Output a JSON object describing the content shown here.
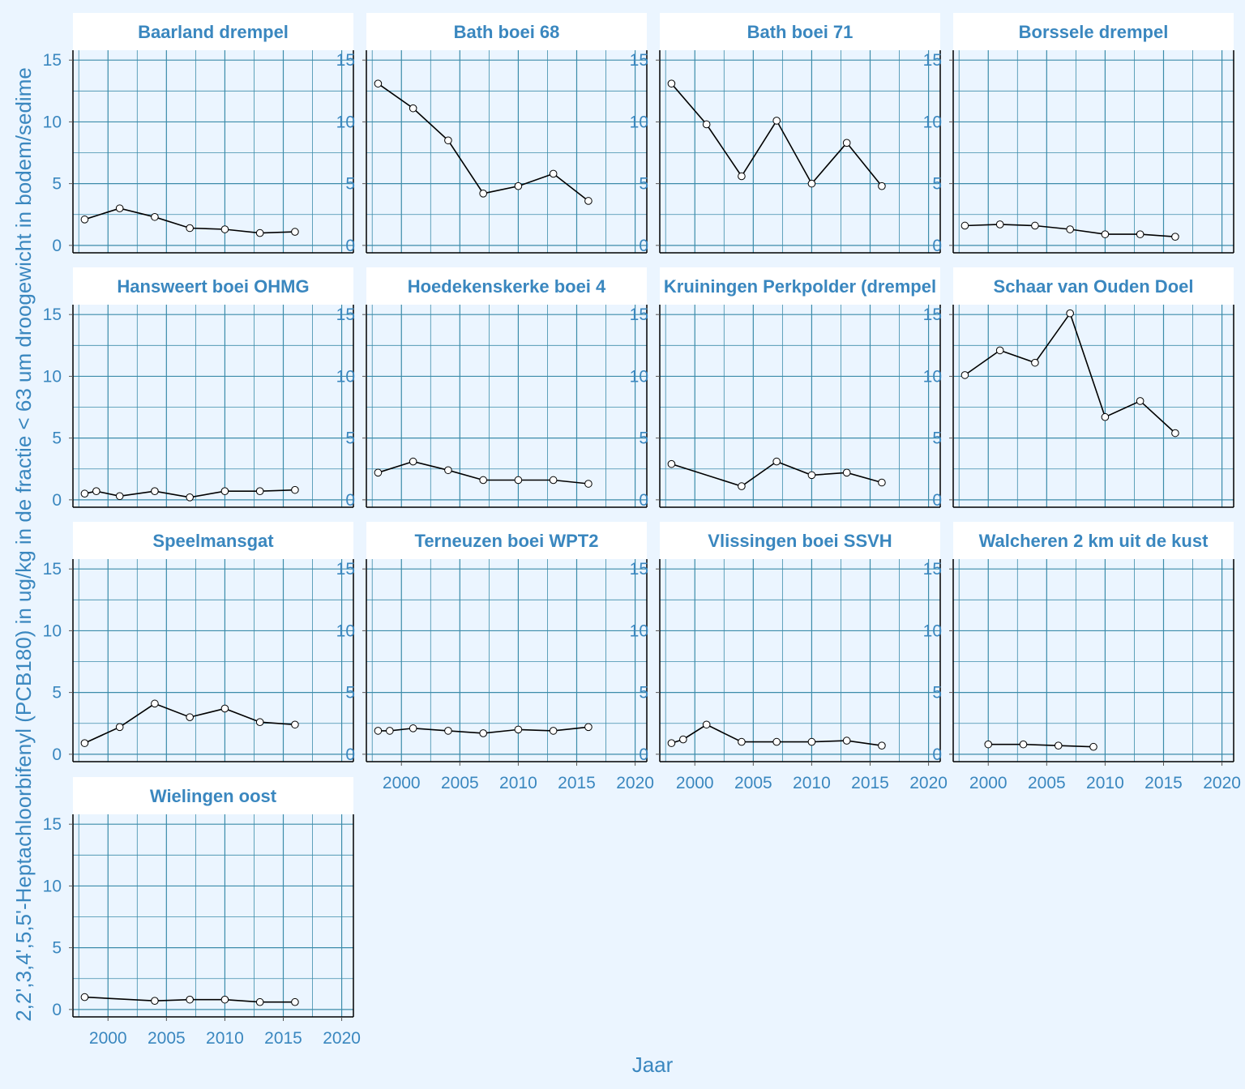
{
  "chart_data": {
    "type": "line",
    "layout": "facet_grid_4_columns",
    "xlabel": "Jaar",
    "ylabel": "2,2',3,4',5,5'-Heptachloorbifenyl (PCB180) in ug/kg in de fractie < 63 um droogewicht in bodem/sedime",
    "xlim": [
      1997,
      2021
    ],
    "ylim": [
      -0.6,
      15.8
    ],
    "x_ticks": [
      2000,
      2005,
      2010,
      2015,
      2020
    ],
    "y_ticks": [
      0,
      5,
      10,
      15
    ],
    "x_tick_labels": [
      "2000",
      "2005",
      "2010",
      "2015",
      "2020"
    ],
    "y_tick_labels": [
      "0",
      "5",
      "10",
      "15"
    ],
    "grid": true,
    "colors": {
      "background": "#EBF5FF",
      "panel_background": "#EBF5FF",
      "strip_background": "#FFFFFF",
      "text": "#3A87BF",
      "grid": "#3C8CAA",
      "line": "#000000",
      "marker_fill": "#FFFFFF"
    },
    "panels": [
      {
        "title": "Baarland drempel",
        "x": [
          1998,
          2001,
          2004,
          2007,
          2010,
          2013,
          2016
        ],
        "y": [
          2.1,
          3.0,
          2.3,
          1.4,
          1.3,
          1.0,
          1.1
        ]
      },
      {
        "title": "Bath boei 68",
        "x": [
          1998,
          2001,
          2004,
          2007,
          2010,
          2013,
          2016
        ],
        "y": [
          13.1,
          11.1,
          8.5,
          4.2,
          4.8,
          5.8,
          3.6
        ]
      },
      {
        "title": "Bath boei 71",
        "x": [
          1998,
          2001,
          2004,
          2007,
          2010,
          2013,
          2016
        ],
        "y": [
          13.1,
          9.8,
          5.6,
          10.1,
          5.0,
          8.3,
          4.8
        ]
      },
      {
        "title": "Borssele drempel",
        "x": [
          1998,
          2001,
          2004,
          2007,
          2010,
          2013,
          2016
        ],
        "y": [
          1.6,
          1.7,
          1.6,
          1.3,
          0.9,
          0.9,
          0.7
        ]
      },
      {
        "title": "Hansweert boei OHMG",
        "x": [
          1998,
          1999,
          2001,
          2004,
          2007,
          2010,
          2013,
          2016
        ],
        "y": [
          0.5,
          0.7,
          0.3,
          0.7,
          0.2,
          0.7,
          0.7,
          0.8
        ]
      },
      {
        "title": "Hoedekenskerke boei 4",
        "x": [
          1998,
          2001,
          2004,
          2007,
          2010,
          2013,
          2016
        ],
        "y": [
          2.2,
          3.1,
          2.4,
          1.6,
          1.6,
          1.6,
          1.3
        ]
      },
      {
        "title": "Kruiningen Perkpolder (drempel",
        "x": [
          1998,
          2004,
          2007,
          2010,
          2013,
          2016
        ],
        "y": [
          2.9,
          1.1,
          3.1,
          2.0,
          2.2,
          1.4
        ]
      },
      {
        "title": "Schaar van Ouden Doel",
        "x": [
          1998,
          2001,
          2004,
          2007,
          2010,
          2013,
          2016
        ],
        "y": [
          10.1,
          12.1,
          11.1,
          15.1,
          6.7,
          8.0,
          5.4
        ]
      },
      {
        "title": "Speelmansgat",
        "x": [
          1998,
          2001,
          2004,
          2007,
          2010,
          2013,
          2016
        ],
        "y": [
          0.9,
          2.2,
          4.1,
          3.0,
          3.7,
          2.6,
          2.4
        ]
      },
      {
        "title": "Terneuzen boei WPT2",
        "x": [
          1998,
          1999,
          2001,
          2004,
          2007,
          2010,
          2013,
          2016
        ],
        "y": [
          1.9,
          1.9,
          2.1,
          1.9,
          1.7,
          2.0,
          1.9,
          2.2
        ]
      },
      {
        "title": "Vlissingen boei SSVH",
        "x": [
          1998,
          1999,
          2001,
          2004,
          2007,
          2010,
          2013,
          2016
        ],
        "y": [
          0.9,
          1.2,
          2.4,
          1.0,
          1.0,
          1.0,
          1.1,
          0.7
        ]
      },
      {
        "title": "Walcheren 2 km uit de kust",
        "x": [
          2000,
          2003,
          2006,
          2009
        ],
        "y": [
          0.8,
          0.8,
          0.7,
          0.6
        ]
      },
      {
        "title": "Wielingen oost",
        "x": [
          1998,
          2004,
          2007,
          2010,
          2013,
          2016
        ],
        "y": [
          1.0,
          0.7,
          0.8,
          0.8,
          0.6,
          0.6
        ]
      }
    ]
  }
}
